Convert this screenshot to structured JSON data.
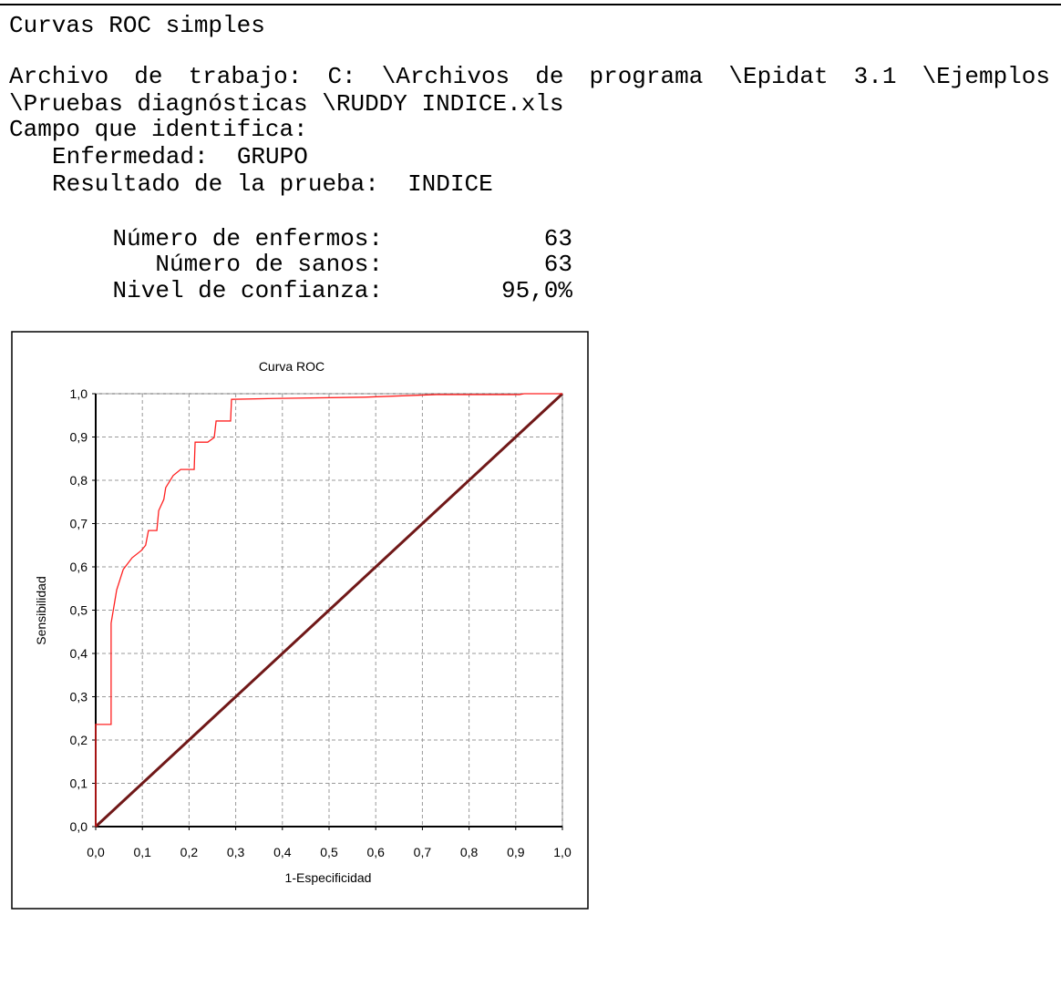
{
  "title": "Curvas ROC simples",
  "file_line_1": "Archivo de trabajo: C: \\Archivos de programa \\Epidat 3.1 \\Ejemplos",
  "file_line_2": "\\Pruebas diagnósticas \\RUDDY INDICE.xls",
  "fields_heading": "Campo que identifica:",
  "fields": [
    "Enfermedad:  GRUPO",
    "Resultado de la prueba:  INDICE"
  ],
  "stats": [
    {
      "label": "Número de enfermos:",
      "value": "63"
    },
    {
      "label": "Número de sanos:",
      "value": "63"
    },
    {
      "label": "Nivel de confianza:",
      "value": "95,0%"
    }
  ],
  "chart_data": {
    "type": "line",
    "title": "Curva ROC",
    "x_label": "1-Especificidad",
    "y_label": "Sensibilidad",
    "xlim": [
      0,
      1
    ],
    "ylim": [
      0,
      1
    ],
    "grid": true,
    "xticks": [
      {
        "value": 0,
        "label": "0,0"
      },
      {
        "value": 0.1,
        "label": "0,1"
      },
      {
        "value": 0.2,
        "label": "0,2"
      },
      {
        "value": 0.3,
        "label": "0,3"
      },
      {
        "value": 0.4,
        "label": "0,4"
      },
      {
        "value": 0.5,
        "label": "0,5"
      },
      {
        "value": 0.6,
        "label": "0,6"
      },
      {
        "value": 0.7,
        "label": "0,7"
      },
      {
        "value": 0.8,
        "label": "0,8"
      },
      {
        "value": 0.9,
        "label": "0,9"
      },
      {
        "value": 1,
        "label": "1,0"
      }
    ],
    "yticks": [
      {
        "value": 0,
        "label": "0,0"
      },
      {
        "value": 0.1,
        "label": "0,1"
      },
      {
        "value": 0.2,
        "label": "0,2"
      },
      {
        "value": 0.3,
        "label": "0,3"
      },
      {
        "value": 0.4,
        "label": "0,4"
      },
      {
        "value": 0.5,
        "label": "0,5"
      },
      {
        "value": 0.6,
        "label": "0,6"
      },
      {
        "value": 0.7,
        "label": "0,7"
      },
      {
        "value": 0.8,
        "label": "0,8"
      },
      {
        "value": 0.9,
        "label": "0,9"
      },
      {
        "value": 1,
        "label": "1,0"
      }
    ],
    "series": [
      {
        "color": "#701818",
        "width": 3,
        "x": [
          0,
          1
        ],
        "values": [
          0,
          1
        ]
      },
      {
        "color": "#ff2020",
        "width": 1.3,
        "x": [
          0,
          0,
          0.033,
          0.033,
          0.045,
          0.059,
          0.078,
          0.098,
          0.107,
          0.113,
          0.131,
          0.135,
          0.146,
          0.15,
          0.166,
          0.182,
          0.211,
          0.213,
          0.24,
          0.254,
          0.258,
          0.289,
          0.291,
          0.381,
          0.576,
          0.73,
          0.908,
          0.918,
          1
        ],
        "values": [
          0,
          0.236,
          0.236,
          0.47,
          0.547,
          0.594,
          0.621,
          0.638,
          0.65,
          0.684,
          0.684,
          0.73,
          0.756,
          0.783,
          0.811,
          0.825,
          0.825,
          0.888,
          0.888,
          0.899,
          0.937,
          0.937,
          0.987,
          0.989,
          0.992,
          0.998,
          0.998,
          1,
          1
        ]
      }
    ]
  }
}
